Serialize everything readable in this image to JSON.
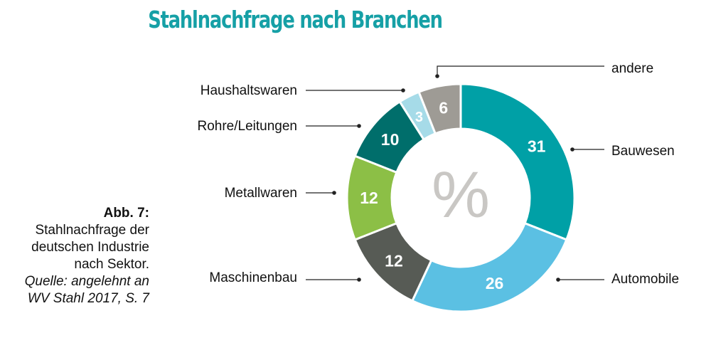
{
  "chart_data": {
    "type": "pie",
    "title": "Stahlnachfrage nach Branchen",
    "center_label": "%",
    "categories": [
      "Bauwesen",
      "Automobile",
      "Maschinenbau",
      "Metallwaren",
      "Rohre/Leitungen",
      "Haushaltswaren",
      "andere"
    ],
    "values": [
      31,
      26,
      12,
      12,
      10,
      3,
      6
    ],
    "colors": [
      "#00a0a6",
      "#5bc0e3",
      "#575b55",
      "#8cbf46",
      "#006e6b",
      "#a6dbe8",
      "#9e9b95"
    ],
    "legend_placement": "outside-labels"
  },
  "caption": {
    "figure": "Abb. 7:",
    "line1": "Stahlnachfrage der",
    "line2": "deutschen Industrie",
    "line3": "nach Sektor.",
    "source1": "Quelle: angelehnt an",
    "source2": "WV Stahl 2017, S. 7"
  }
}
